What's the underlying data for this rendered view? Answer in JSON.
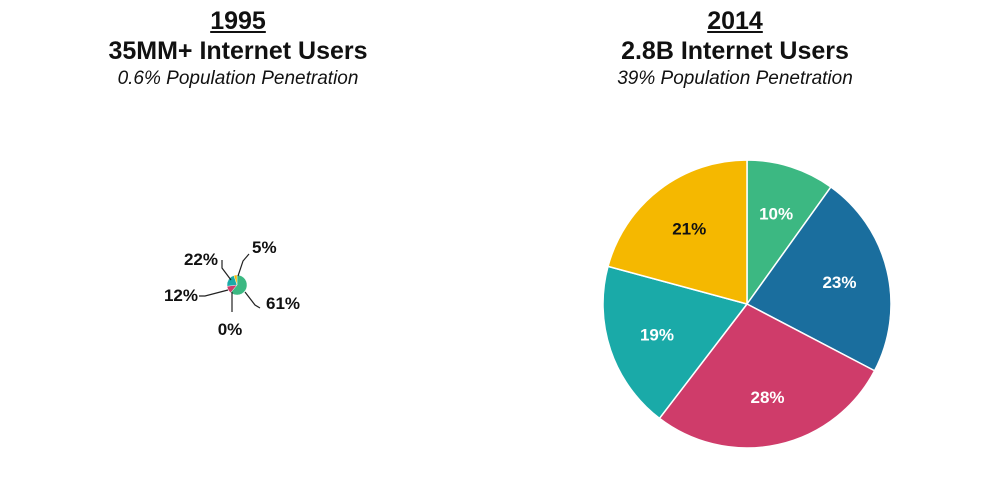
{
  "colors": {
    "green": "#3cb882",
    "blue": "#1a6e9e",
    "pink": "#cf3c6a",
    "teal": "#1aaaa8",
    "yellow": "#f5b800"
  },
  "chart_data": [
    {
      "type": "pie",
      "year": "1995",
      "title": "35MM+ Internet Users",
      "subtitle": "0.6% Population Penetration",
      "slices": [
        {
          "label": "61%",
          "value": 61,
          "color": "#3cb882"
        },
        {
          "label": "0%",
          "value": 0,
          "color": "#1a6e9e"
        },
        {
          "label": "12%",
          "value": 12,
          "color": "#cf3c6a"
        },
        {
          "label": "22%",
          "value": 22,
          "color": "#1aaaa8"
        },
        {
          "label": "5%",
          "value": 5,
          "color": "#f5b800"
        }
      ]
    },
    {
      "type": "pie",
      "year": "2014",
      "title": "2.8B Internet Users",
      "subtitle": "39% Population Penetration",
      "slices": [
        {
          "label": "10%",
          "value": 10,
          "color": "#3cb882"
        },
        {
          "label": "23%",
          "value": 23,
          "color": "#1a6e9e"
        },
        {
          "label": "28%",
          "value": 28,
          "color": "#cf3c6a"
        },
        {
          "label": "19%",
          "value": 19,
          "color": "#1aaaa8"
        },
        {
          "label": "21%",
          "value": 21,
          "color": "#f5b800"
        }
      ]
    }
  ]
}
